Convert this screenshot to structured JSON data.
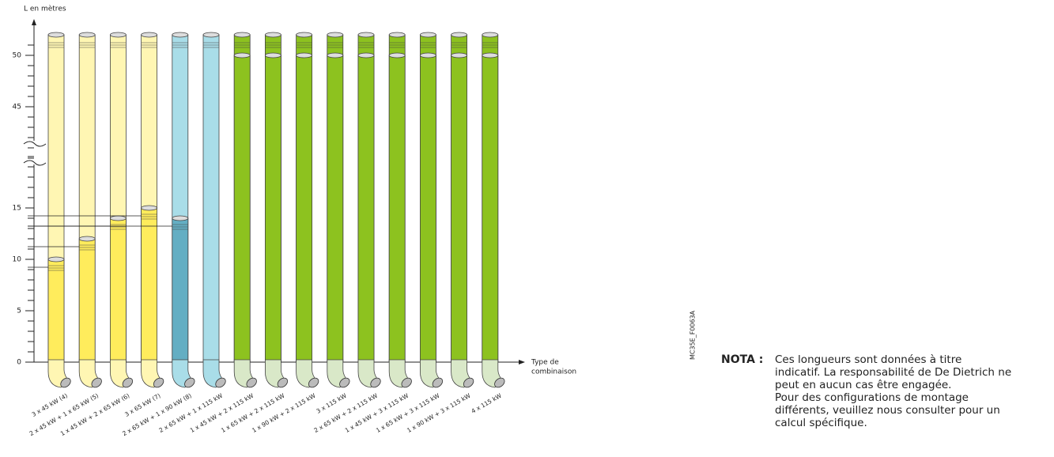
{
  "chart_data": {
    "type": "bar",
    "y_label": "L en mètres",
    "x_label": [
      "Type de",
      "combinaison"
    ],
    "categories": [
      "3 x 45 kW (4)",
      "2 x 45 kW + 1 x 65 kW (5)",
      "1 x 45 kW + 2 x 65 kW (6)",
      "3 x 65 kW (7)",
      "2 x 65 kW + 1 x 90 kW (8)",
      "2 x 65 kW + 1 x 115 kW",
      "1 x 45 kW + 2 x 115 kW",
      "1 x 65 kW + 2 x 115 kW",
      "1 x 90 kW + 2 x 115 kW",
      "3 x 115 kW",
      "2 x 65 kW + 2 x 115 kW",
      "1 x 45 kW + 3 x 115 kW",
      "1 x 65 kW + 3 x 115 kW",
      "1 x 90 kW + 3 x 115 kW",
      "4 x 115 kW"
    ],
    "values": [
      10,
      12,
      14,
      15,
      14,
      null,
      50,
      50,
      50,
      50,
      50,
      50,
      50,
      50,
      50
    ],
    "colors": [
      "#ffec5c",
      "#ffec5c",
      "#ffec5c",
      "#ffec5c",
      "#64aec3",
      "#64aec3",
      "#8dc21f",
      "#8dc21f",
      "#8dc21f",
      "#8dc21f",
      "#8dc21f",
      "#8dc21f",
      "#8dc21f",
      "#8dc21f",
      "#8dc21f"
    ],
    "light_colors": [
      "#fff6b3",
      "#fff6b3",
      "#fff6b3",
      "#fff6b3",
      "#a9dde8",
      "#a9dde8",
      "#8dc21f",
      "#8dc21f",
      "#8dc21f",
      "#8dc21f",
      "#8dc21f",
      "#8dc21f",
      "#8dc21f",
      "#8dc21f",
      "#8dc21f"
    ],
    "ylim": [
      0,
      52
    ],
    "yticks": [
      0,
      5,
      10,
      15,
      45,
      50
    ],
    "code": "MC35E_F0063A",
    "note_head": "NOTA :",
    "note_lines": [
      "Ces longueurs sont données à titre",
      "indicatif. La responsabilité de De Dietrich ne",
      "peut en aucun cas être engagée.",
      "Pour des configurations de montage",
      "différents, veuillez nous consulter pour un",
      "calcul spécifique."
    ]
  }
}
